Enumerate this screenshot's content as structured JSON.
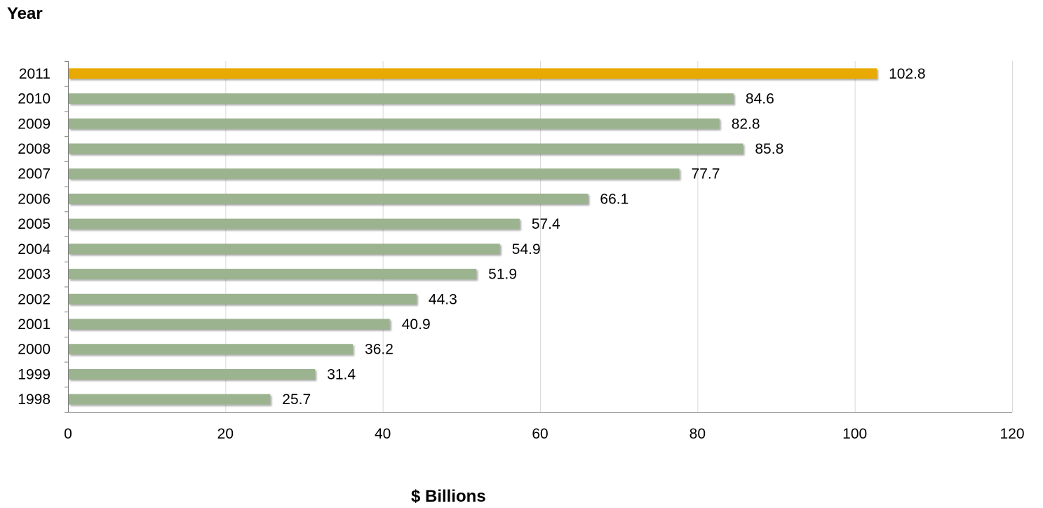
{
  "chart_data": {
    "type": "bar",
    "orientation": "horizontal",
    "ylabel": "Year",
    "xlabel": "$ Billions",
    "categories": [
      "2011",
      "2010",
      "2009",
      "2008",
      "2007",
      "2006",
      "2005",
      "2004",
      "2003",
      "2002",
      "2001",
      "2000",
      "1999",
      "1998"
    ],
    "values": [
      102.8,
      84.6,
      82.8,
      85.8,
      77.7,
      66.1,
      57.4,
      54.9,
      51.9,
      44.3,
      40.9,
      36.2,
      31.4,
      25.7
    ],
    "value_labels": [
      "102.8",
      "84.6",
      "82.8",
      "85.8",
      "77.7",
      "66.1",
      "57.4",
      "54.9",
      "51.9",
      "44.3",
      "40.9",
      "36.2",
      "31.4",
      "25.7"
    ],
    "xlim": [
      0,
      120
    ],
    "x_ticks": [
      0,
      20,
      40,
      60,
      80,
      100,
      120
    ],
    "x_tick_labels": [
      "0",
      "20",
      "40",
      "60",
      "80",
      "100",
      "120"
    ],
    "grid": "vertical",
    "legend": "none",
    "highlight_category": "2011",
    "colors": {
      "bar": "#9cb38f",
      "highlight": "#e8aa00",
      "grid": "#d9d9d9",
      "axis": "#7f7f7f"
    }
  }
}
